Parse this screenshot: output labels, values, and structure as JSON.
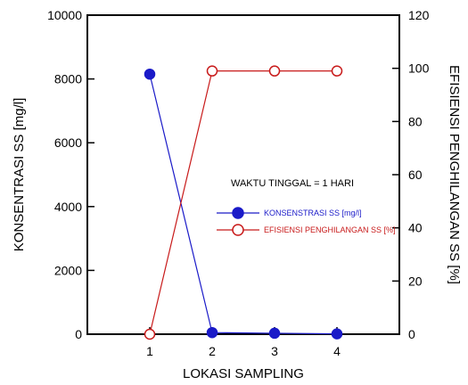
{
  "chart_data": {
    "type": "line",
    "xlabel": "LOKASI SAMPLING",
    "ylabel_left": "KONSENTRASI SS [mg/l]",
    "ylabel_right": "EFISIENSI PENGHILANGAN SS [%]",
    "xlim": [
      0,
      5
    ],
    "ylim_left": [
      0,
      10000
    ],
    "ylim_right": [
      0,
      120
    ],
    "x_ticks": [
      1,
      2,
      3,
      4
    ],
    "y_left_ticks": [
      0,
      2000,
      4000,
      6000,
      8000,
      10000
    ],
    "y_right_ticks": [
      0,
      20,
      40,
      60,
      80,
      100,
      120
    ],
    "annotation": "WAKTU TINGGAL = 1 HARI",
    "grid": false,
    "legend_position": "center-right",
    "series": [
      {
        "name": "KONSENSTRASI SS [mg/l]",
        "axis": "left",
        "color": "#1a1ac8",
        "marker": "filled-circle",
        "x": [
          1,
          2,
          3,
          4
        ],
        "y": [
          8150,
          50,
          30,
          10
        ]
      },
      {
        "name": "EFISIENSI PENGHILANGAN SS [%]",
        "axis": "right",
        "color": "#c81a1a",
        "marker": "open-circle",
        "x": [
          1,
          2,
          3,
          4
        ],
        "y": [
          0,
          99,
          99,
          99
        ]
      }
    ]
  }
}
